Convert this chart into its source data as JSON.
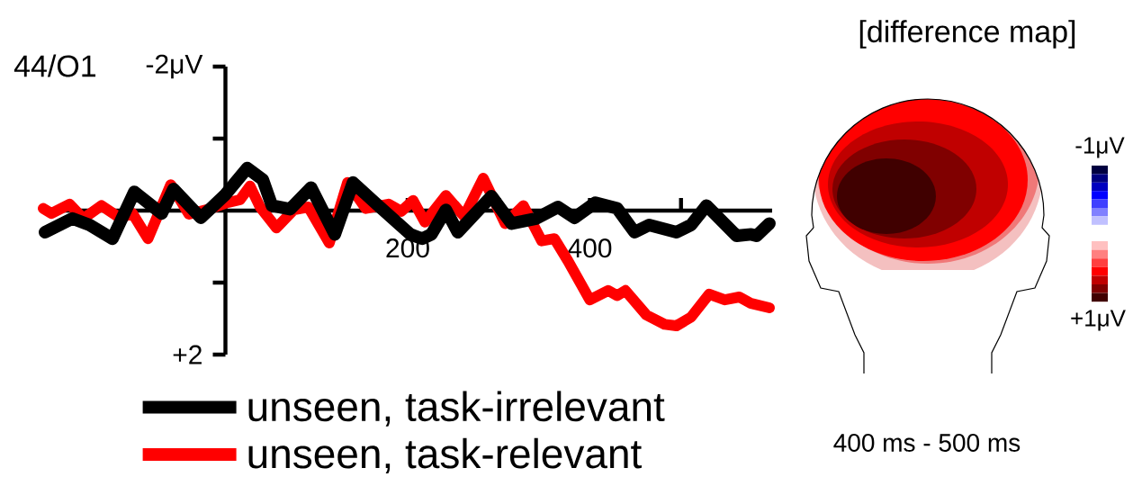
{
  "chart_data": [
    {
      "type": "line",
      "title": "44/O1",
      "xlim": [
        -200,
        600
      ],
      "xticks": [
        200,
        {
          "value": 300,
          "label": null
        },
        400,
        {
          "value": 500,
          "label": null
        }
      ],
      "ylim": [
        2,
        -2
      ],
      "yticks": [
        {
          "value": -2,
          "label": "-2μV"
        },
        {
          "value": -1,
          "label": null
        },
        {
          "value": 1,
          "label": null
        },
        {
          "value": 2,
          "label": "+2"
        }
      ],
      "legend": "bottom",
      "series": [
        {
          "name": "unseen, task-irrelevant",
          "color": "#000000",
          "x": [
            -198,
            -168,
            -149,
            -124,
            -100,
            -70,
            -57,
            -27,
            -1,
            24,
            41,
            51,
            71,
            94,
            120,
            140,
            166,
            203,
            216,
            226,
            242,
            255,
            292,
            314,
            341,
            365,
            383,
            406,
            430,
            449,
            465,
            495,
            511,
            528,
            561,
            577,
            583,
            597
          ],
          "values": [
            0.3,
            0.11,
            0.2,
            0.39,
            -0.26,
            0.04,
            -0.3,
            0.1,
            -0.21,
            -0.59,
            -0.43,
            -0.07,
            -0.02,
            -0.32,
            0.33,
            -0.39,
            -0.09,
            0.33,
            0.39,
            0.33,
            -0.01,
            0.3,
            -0.2,
            0.18,
            0.11,
            -0.05,
            0.1,
            -0.11,
            -0.03,
            0.3,
            0.2,
            0.3,
            0.2,
            -0.07,
            0.35,
            0.33,
            0.35,
            0.18
          ]
        },
        {
          "name": "unseen, task-relevant",
          "color": "#ff0000",
          "x": [
            -200,
            -191,
            -171,
            -156,
            -136,
            -116,
            -102,
            -85,
            -60,
            -40,
            -18,
            2,
            16,
            27,
            38,
            56,
            75,
            91,
            114,
            134,
            154,
            179,
            193,
            206,
            219,
            242,
            262,
            283,
            307,
            327,
            347,
            361,
            376,
            400,
            420,
            430,
            439,
            462,
            482,
            495,
            511,
            531,
            548,
            564,
            577,
            597
          ],
          "values": [
            -0.03,
            0.04,
            -0.09,
            0.11,
            -0.07,
            0.1,
            0.04,
            0.39,
            -0.36,
            0.05,
            -0.02,
            -0.11,
            -0.15,
            -0.34,
            -0.05,
            0.24,
            -0.01,
            -0.05,
            0.45,
            -0.39,
            -0.03,
            -0.09,
            0.01,
            -0.14,
            0.16,
            -0.21,
            0.08,
            -0.45,
            0.18,
            -0.07,
            0.42,
            0.39,
            0.7,
            1.24,
            1.11,
            1.18,
            1.11,
            1.45,
            1.58,
            1.6,
            1.48,
            1.16,
            1.24,
            1.2,
            1.29,
            1.35
          ]
        }
      ]
    },
    {
      "type": "other",
      "title": "[difference map]",
      "annotations": [
        "400 ms - 500 ms",
        "-1μV",
        "+1μV"
      ]
    }
  ]
}
